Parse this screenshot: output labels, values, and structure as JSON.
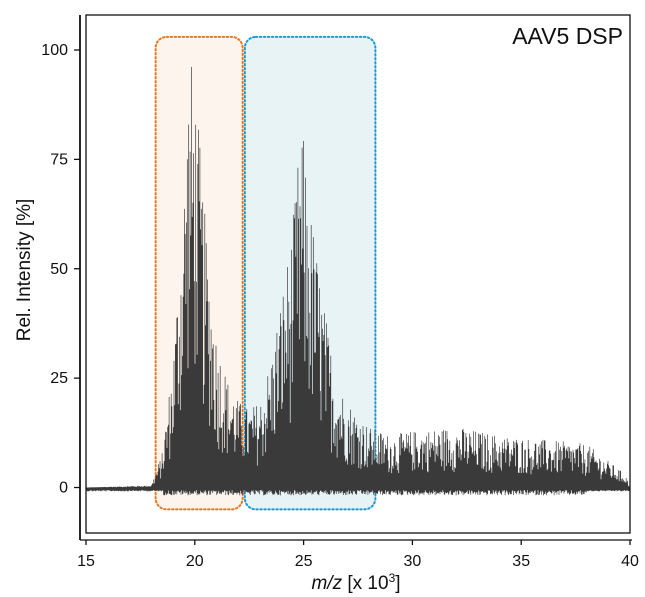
{
  "chart_data": {
    "type": "line",
    "title": "AAV5  DSP",
    "xlabel_italic": "m/z",
    "xlabel_rest": " [x 10",
    "xlabel_sup": "3",
    "xlabel_close": "]",
    "ylabel": "Rel. Intensity [%]",
    "xlim": [
      15,
      40
    ],
    "ylim": [
      -12,
      108
    ],
    "x_ticks": [
      15,
      20,
      25,
      30,
      35,
      40
    ],
    "y_ticks": [
      0,
      25,
      50,
      75,
      100
    ],
    "grid": false,
    "legend": "none",
    "series": [
      {
        "color": "#3a3a3a",
        "envelope": [
          {
            "x": 15.0,
            "y": 0
          },
          {
            "x": 18.0,
            "y": 0.5
          },
          {
            "x": 18.5,
            "y": 8
          },
          {
            "x": 19.0,
            "y": 30
          },
          {
            "x": 19.5,
            "y": 70
          },
          {
            "x": 19.75,
            "y": 100
          },
          {
            "x": 20.0,
            "y": 95
          },
          {
            "x": 20.5,
            "y": 60
          },
          {
            "x": 21.0,
            "y": 35
          },
          {
            "x": 21.5,
            "y": 25
          },
          {
            "x": 22.0,
            "y": 20
          },
          {
            "x": 22.5,
            "y": 18
          },
          {
            "x": 23.0,
            "y": 20
          },
          {
            "x": 23.5,
            "y": 30
          },
          {
            "x": 24.0,
            "y": 45
          },
          {
            "x": 24.5,
            "y": 60
          },
          {
            "x": 24.9,
            "y": 85
          },
          {
            "x": 25.3,
            "y": 65
          },
          {
            "x": 26.0,
            "y": 40
          },
          {
            "x": 26.5,
            "y": 25
          },
          {
            "x": 27.0,
            "y": 20
          },
          {
            "x": 28.0,
            "y": 14
          },
          {
            "x": 29.0,
            "y": 12
          },
          {
            "x": 30.0,
            "y": 13
          },
          {
            "x": 32.0,
            "y": 14
          },
          {
            "x": 34.0,
            "y": 12
          },
          {
            "x": 36.0,
            "y": 11
          },
          {
            "x": 38.0,
            "y": 10
          },
          {
            "x": 39.8,
            "y": 3
          },
          {
            "x": 40.0,
            "y": 0
          }
        ]
      }
    ],
    "highlight_regions": [
      {
        "x": [
          18.2,
          22.2
        ],
        "y": [
          -5,
          103
        ],
        "color": "#e8781e",
        "fill": "#fdf4ee"
      },
      {
        "x": [
          22.3,
          28.3
        ],
        "y": [
          -5,
          103
        ],
        "color": "#1a9ad6",
        "fill": "#e8f3f6"
      }
    ]
  }
}
